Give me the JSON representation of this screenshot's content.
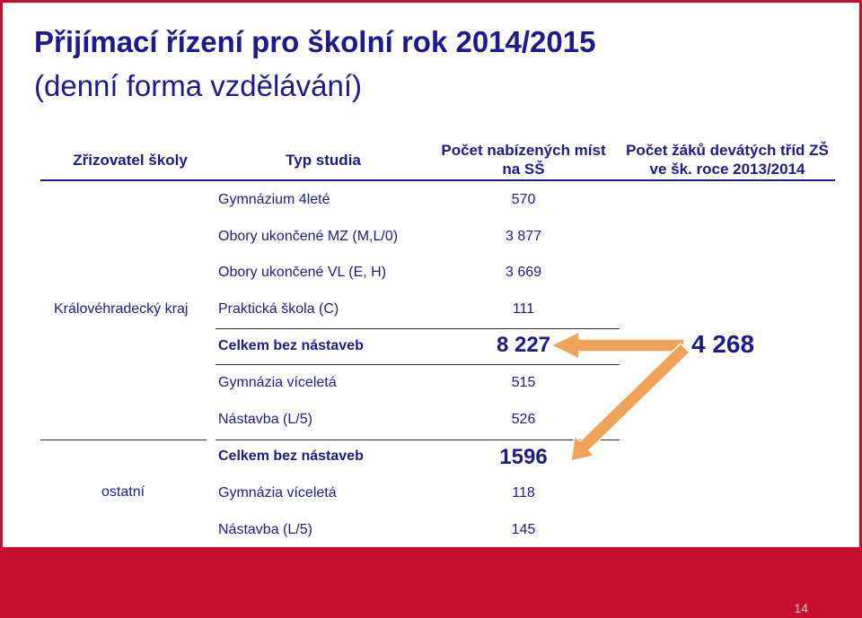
{
  "title": {
    "line1": "Přijímací řízení pro školní rok 2014/2015",
    "line2": "(denní forma vzdělávání)"
  },
  "headers": {
    "zrizovatel": "Zřizovatel školy",
    "typ": "Typ studia",
    "pocet_mist_l1": "Počet nabízených míst",
    "pocet_mist_l2": "na SŠ",
    "pocet_zaku_l1": "Počet žáků devátých tříd ZŠ",
    "pocet_zaku_l2": "ve šk. roce 2013/2014"
  },
  "regions": {
    "kraj": "Královéhradecký kraj",
    "ostatni": "ostatní"
  },
  "rows": [
    {
      "typ": "Gymnázium 4leté",
      "pocet": "570"
    },
    {
      "typ": "Obory ukončené MZ (M,L/0)",
      "pocet": "3 877"
    },
    {
      "typ": "Obory ukončené VL (E, H)",
      "pocet": "3 669"
    },
    {
      "typ": "Praktická škola (C)",
      "pocet": "111"
    },
    {
      "typ": "Celkem bez nástaveb",
      "pocet": "8 227"
    },
    {
      "typ": "Gymnázia víceletá",
      "pocet": "515"
    },
    {
      "typ": "Nástavba (L/5)",
      "pocet": "526"
    },
    {
      "typ": "Celkem bez nástaveb",
      "pocet": "1596"
    },
    {
      "typ": "Gymnázia víceletá",
      "pocet": "118"
    },
    {
      "typ": "Nástavba (L/5)",
      "pocet": "145"
    }
  ],
  "total_zaku": "4 268",
  "page_number": "14",
  "colors": {
    "accent": "#c8102e",
    "text": "#1f1a8c",
    "arrow": "#f0a259"
  }
}
